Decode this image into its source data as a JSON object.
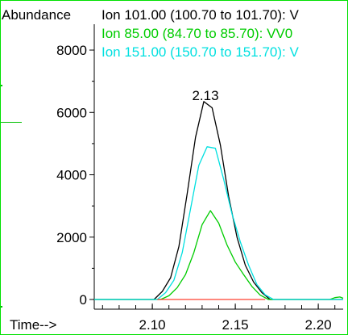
{
  "chart_data": {
    "type": "line",
    "ylabel": "Abundance",
    "xlabel": "Time-->",
    "xlim": [
      2.065,
      2.215
    ],
    "ylim": [
      0,
      8700
    ],
    "yticks": [
      0,
      2000,
      4000,
      6000,
      8000
    ],
    "xticks": [
      2.1,
      2.15,
      2.2
    ],
    "xtick_labels": [
      "2.10",
      "2.15",
      "2.20"
    ],
    "ytick_labels": [
      "0",
      "2000",
      "4000",
      "6000",
      "8000"
    ],
    "annotations": [
      {
        "text": "2.13",
        "x": 2.132,
        "y": 6450
      }
    ],
    "series": [
      {
        "name": "Ion 101.00 (100.70 to 101.70): V",
        "color": "#000000",
        "x": [
          2.065,
          2.101,
          2.106,
          2.111,
          2.116,
          2.121,
          2.126,
          2.131,
          2.136,
          2.141,
          2.146,
          2.151,
          2.156,
          2.161,
          2.166,
          2.171,
          2.176,
          2.215
        ],
        "y": [
          0,
          0,
          260,
          700,
          1700,
          3400,
          5200,
          6350,
          6150,
          4950,
          3300,
          2000,
          1100,
          560,
          220,
          0,
          0,
          0
        ]
      },
      {
        "name": "Ion  85.00 (84.70 to 85.70): VV0",
        "color": "#00cc00",
        "x": [
          2.065,
          2.105,
          2.11,
          2.115,
          2.12,
          2.125,
          2.13,
          2.135,
          2.14,
          2.145,
          2.15,
          2.155,
          2.16,
          2.165,
          2.17,
          2.207,
          2.21,
          2.213,
          2.215
        ],
        "y": [
          0,
          0,
          120,
          380,
          800,
          1500,
          2400,
          2850,
          2450,
          1750,
          1200,
          800,
          420,
          140,
          0,
          0,
          60,
          80,
          40
        ]
      },
      {
        "name": "Ion 151.00 (150.70 to 151.70): V",
        "color": "#00e0e0",
        "x": [
          2.065,
          2.103,
          2.108,
          2.113,
          2.118,
          2.123,
          2.128,
          2.133,
          2.138,
          2.143,
          2.148,
          2.153,
          2.158,
          2.163,
          2.168,
          2.173,
          2.215
        ],
        "y": [
          0,
          0,
          220,
          620,
          1500,
          2900,
          4300,
          4900,
          4850,
          3850,
          2750,
          1850,
          1100,
          480,
          150,
          0,
          0
        ]
      },
      {
        "color": "#ff4030",
        "x": [
          2.103,
          2.168
        ],
        "y": [
          0,
          0
        ]
      }
    ]
  }
}
